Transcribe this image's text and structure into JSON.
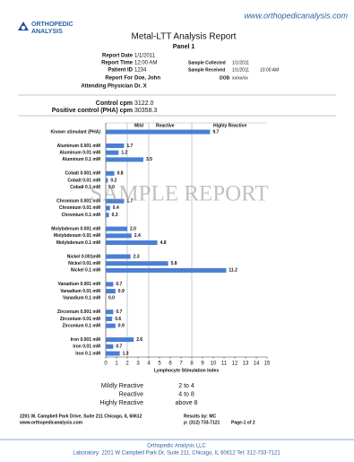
{
  "header": {
    "url": "www.orthopedicanalysis.com",
    "logo_line1": "ORTHOPEDIC",
    "logo_line2": "ANALYSIS",
    "title": "Metal-LTT Analysis Report",
    "subtitle": "Panel 1"
  },
  "info": {
    "report_date": {
      "label": "Report Date",
      "value": "1/1/2011"
    },
    "report_time": {
      "label": "Report Time",
      "value": "12:00 AM"
    },
    "patient_id": {
      "label": "Patient ID",
      "value": "1234"
    },
    "report_for": {
      "label": "Report For",
      "value": "Doe, John"
    },
    "physician": {
      "label": "Attending Physician",
      "value": "Dr. X"
    },
    "sample_collected": {
      "label": "Sample Collected",
      "value": "1/1/2011"
    },
    "sample_received": {
      "label": "Sample Received",
      "value": "1/1/2011",
      "time": "10:00 AM"
    },
    "dob": {
      "label": "DOB",
      "value": "xx/xx/xx"
    }
  },
  "controls": [
    {
      "label": "Control cpm",
      "value": "3122.0"
    },
    {
      "label": "Positive control (PHA) cpm",
      "value": "30358.3"
    }
  ],
  "watermark": "SAMPLE REPORT",
  "chart_data": {
    "type": "bar",
    "orientation": "horizontal",
    "color": "#4a7fd4",
    "categories": [
      "Known stimulant (PHA)",
      null,
      "Aluminum 0.001 mM",
      "Aluminum 0.01 mM",
      "Aluminum 0.1 mM",
      null,
      "Cobalt 0.001 mM",
      "Cobalt 0.01 mM",
      "Cobalt 0.1 mM",
      null,
      "Chromium 0.001 mM",
      "Chromium 0.01 mM",
      "Chromium 0.1 mM",
      null,
      "Molybdenum 0.001 mM",
      "Molybdenum 0.01 mM",
      "Molybdenum 0.1 mM",
      null,
      "Nickel 0.001mM",
      "Nickel 0.01 mM",
      "Nickel 0.1 mM",
      null,
      "Vanadium 0.001 mM",
      "Vanadium 0.01 mM",
      "Vanadium 0.1 mM",
      null,
      "Zirconium 0.001 mM",
      "Zirconium 0.01 mM",
      "Zirconium 0.1 mM",
      null,
      "Iron 0.001 mM",
      "Iron 0.01 mM",
      "Iron 0.1 mM"
    ],
    "values": [
      9.7,
      null,
      1.7,
      1.2,
      3.5,
      null,
      0.8,
      0.2,
      0.0,
      null,
      1.7,
      0.4,
      0.3,
      null,
      2.0,
      2.4,
      4.8,
      null,
      2.3,
      5.8,
      11.2,
      null,
      0.7,
      0.9,
      0.0,
      null,
      0.7,
      0.6,
      0.9,
      null,
      2.6,
      0.7,
      1.3
    ],
    "value_labels": [
      "9.7",
      null,
      "1.7",
      "1.2",
      "3.5",
      null,
      "0.8",
      "0.2",
      "0.0",
      null,
      "1.7",
      "0.4",
      "0.3",
      null,
      "2.0",
      "2.4",
      "4.8",
      null,
      "2.3",
      "5.8",
      "11.2",
      null,
      "0.7",
      "0.9",
      "0.0",
      null,
      "0.7",
      "0.6",
      "0.9",
      null,
      "2.6",
      "0.7",
      "1.3"
    ],
    "xlim": [
      0,
      15
    ],
    "xticks": [
      0,
      1,
      2,
      3,
      4,
      5,
      6,
      7,
      8,
      9,
      10,
      11,
      12,
      13,
      14,
      15
    ],
    "xlabel": "Lymphocyte Stimulation Index",
    "thresholds": [
      2,
      4,
      8
    ],
    "zone_labels": [
      "Mild",
      "Reactive",
      "Highly Reactive"
    ]
  },
  "scale_legend": [
    {
      "label": "Mildly Reactive",
      "range": "2 to 4"
    },
    {
      "label": "Reactive",
      "range": "4 to 8"
    },
    {
      "label": "Highly Reactive",
      "range": "above 8"
    }
  ],
  "footer": {
    "address": "2201 W. Campbell Park Drive, Suite 211  Chicago, IL 60612",
    "results_by": "Results by:  MC",
    "url": "www.orthopedicanalysis.com",
    "phone": "p: (312) 733-7121",
    "page": "Page-1 of 2",
    "company": "Orthopedic Analysis LLC",
    "lab": "Laboratory: 2201 W Campbell Park Dr, Suite 211, Chicago, IL 60612  Tel: 312-733-7121"
  }
}
